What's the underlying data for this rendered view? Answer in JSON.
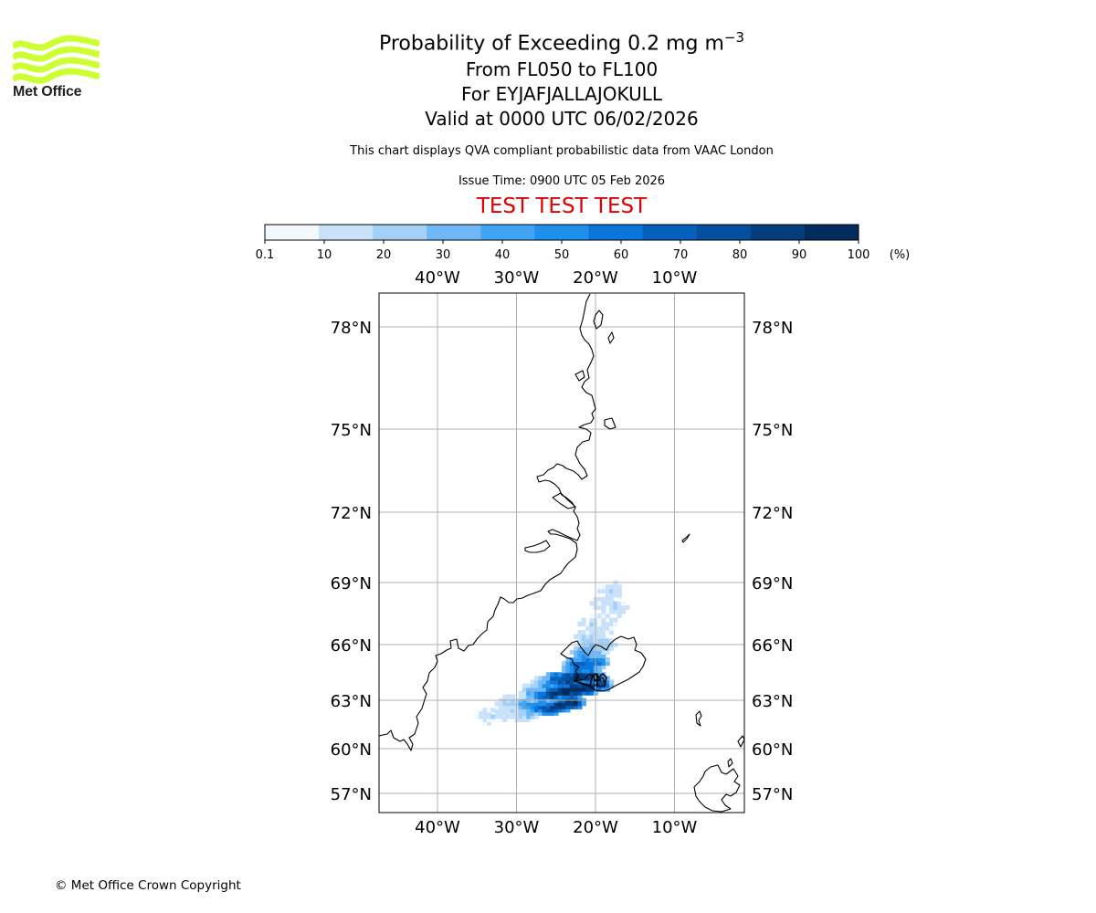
{
  "logo": {
    "name": "Met Office",
    "color": "#ccff33",
    "text_color": "#1f1f1f"
  },
  "title": {
    "main_prefix": "Probability of Exceeding 0.2 mg m",
    "main_superscript": "−3",
    "levels": "From FL050 to FL100",
    "volcano": "For EYJAFJALLAJOKULL",
    "valid": "Valid at 0000 UTC 06/02/2026"
  },
  "description": "This chart displays QVA compliant probabilistic data from VAAC London",
  "issue_time": "Issue Time: 0900 UTC 05 Feb 2026",
  "test_banner": "TEST TEST TEST",
  "test_color": "#e00000",
  "colorbar": {
    "ticks": [
      "0.1",
      "10",
      "20",
      "30",
      "40",
      "50",
      "60",
      "70",
      "80",
      "90",
      "100"
    ],
    "unit": "(%)",
    "colors": [
      "#f2f8fe",
      "#c9e2f9",
      "#a3d0f7",
      "#6fb8f5",
      "#41a3f3",
      "#1f8fee",
      "#0b75d9",
      "#0860bd",
      "#064f9f",
      "#043d7e",
      "#022c5c"
    ]
  },
  "map_labels": {
    "lon_ticks": [
      "40°W",
      "30°W",
      "20°W",
      "10°W"
    ],
    "lat_ticks": [
      "78°N",
      "75°N",
      "72°N",
      "69°N",
      "66°N",
      "63°N",
      "60°N",
      "57°N"
    ]
  },
  "ash_field": [
    {
      "lon": -29.0,
      "lat": 62.1,
      "p": 2
    },
    {
      "lon": -30.5,
      "lat": 62.3,
      "p": 1
    },
    {
      "lon": -32.0,
      "lat": 62.2,
      "p": 1
    },
    {
      "lon": -33.5,
      "lat": 62.0,
      "p": 1
    },
    {
      "lon": -31.0,
      "lat": 62.8,
      "p": 2
    },
    {
      "lon": -29.0,
      "lat": 62.8,
      "p": 4
    },
    {
      "lon": -27.5,
      "lat": 62.6,
      "p": 6
    },
    {
      "lon": -26.0,
      "lat": 62.5,
      "p": 8
    },
    {
      "lon": -24.5,
      "lat": 62.7,
      "p": 9
    },
    {
      "lon": -23.0,
      "lat": 62.9,
      "p": 10
    },
    {
      "lon": -27.0,
      "lat": 63.3,
      "p": 7
    },
    {
      "lon": -25.5,
      "lat": 63.4,
      "p": 9
    },
    {
      "lon": -24.0,
      "lat": 63.5,
      "p": 10
    },
    {
      "lon": -22.5,
      "lat": 63.6,
      "p": 10
    },
    {
      "lon": -21.0,
      "lat": 63.7,
      "p": 9
    },
    {
      "lon": -25.0,
      "lat": 64.1,
      "p": 7
    },
    {
      "lon": -23.5,
      "lat": 64.2,
      "p": 9
    },
    {
      "lon": -22.0,
      "lat": 64.3,
      "p": 10
    },
    {
      "lon": -20.5,
      "lat": 64.3,
      "p": 8
    },
    {
      "lon": -19.5,
      "lat": 63.9,
      "p": 8
    },
    {
      "lon": -22.5,
      "lat": 64.9,
      "p": 6
    },
    {
      "lon": -21.0,
      "lat": 65.0,
      "p": 7
    },
    {
      "lon": -19.8,
      "lat": 65.1,
      "p": 5
    },
    {
      "lon": -21.5,
      "lat": 65.6,
      "p": 4
    },
    {
      "lon": -20.2,
      "lat": 65.8,
      "p": 3
    },
    {
      "lon": -19.0,
      "lat": 66.0,
      "p": 2
    },
    {
      "lon": -21.0,
      "lat": 66.3,
      "p": 2
    },
    {
      "lon": -19.5,
      "lat": 66.7,
      "p": 1
    },
    {
      "lon": -18.5,
      "lat": 67.2,
      "p": 1
    },
    {
      "lon": -20.5,
      "lat": 67.0,
      "p": 1
    },
    {
      "lon": -17.5,
      "lat": 67.8,
      "p": 1
    },
    {
      "lon": -19.0,
      "lat": 68.0,
      "p": 1
    },
    {
      "lon": -18.2,
      "lat": 68.6,
      "p": 1
    },
    {
      "lon": -26.5,
      "lat": 63.9,
      "p": 3
    },
    {
      "lon": -28.0,
      "lat": 63.5,
      "p": 2
    }
  ]
}
